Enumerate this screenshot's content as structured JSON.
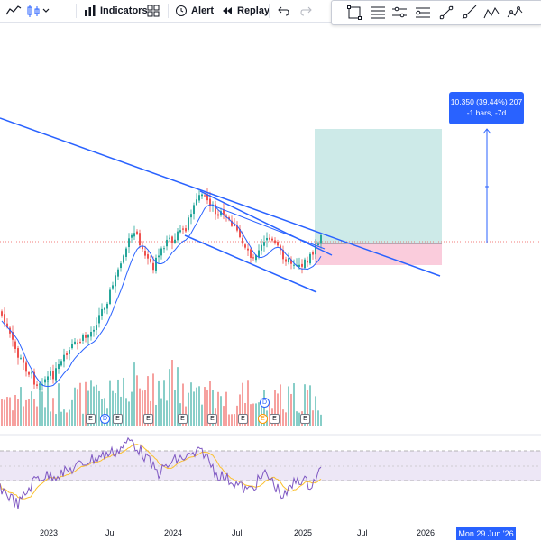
{
  "toolbar": {
    "indicators_label": "Indicators",
    "alert_label": "Alert",
    "replay_label": "Replay",
    "icons": [
      "line-chart-icon",
      "candles-icon",
      "chevron-down-icon",
      "indicators-icon",
      "templates-icon",
      "alert-icon",
      "replay-icon",
      "undo-icon",
      "redo-icon"
    ]
  },
  "drawing_toolbar": {
    "icons": [
      "rectangle-icon",
      "fib-retracement-icon",
      "horizontal-lines-icon",
      "parallel-channel-icon",
      "trend-line-icon",
      "ray-icon",
      "xabcd-pattern-icon",
      "elliott-wave-icon"
    ]
  },
  "position_tool": {
    "line1": "10,350 (39.44%) 207",
    "line2": "-1 bars, -7d",
    "profit_color": "#b2dfdb",
    "loss_color": "#f8bbd0"
  },
  "time_axis": {
    "labels": [
      "2023",
      "Jul",
      "2024",
      "Jul",
      "2025",
      "Jul",
      "2026"
    ],
    "crosshair_date": "Mon 29 Jun '26"
  },
  "events": [
    "E",
    "D",
    "E",
    "E",
    "E",
    "E",
    "E",
    "E",
    "D",
    "E",
    "E"
  ],
  "colors": {
    "up": "#26a69a",
    "down": "#ef5350",
    "trendline": "#2962ff",
    "ma": "#2962ff",
    "rsi": "#7e57c2",
    "rsi_ma": "#fbc02d",
    "rsi_band": "#ede7f6"
  }
}
